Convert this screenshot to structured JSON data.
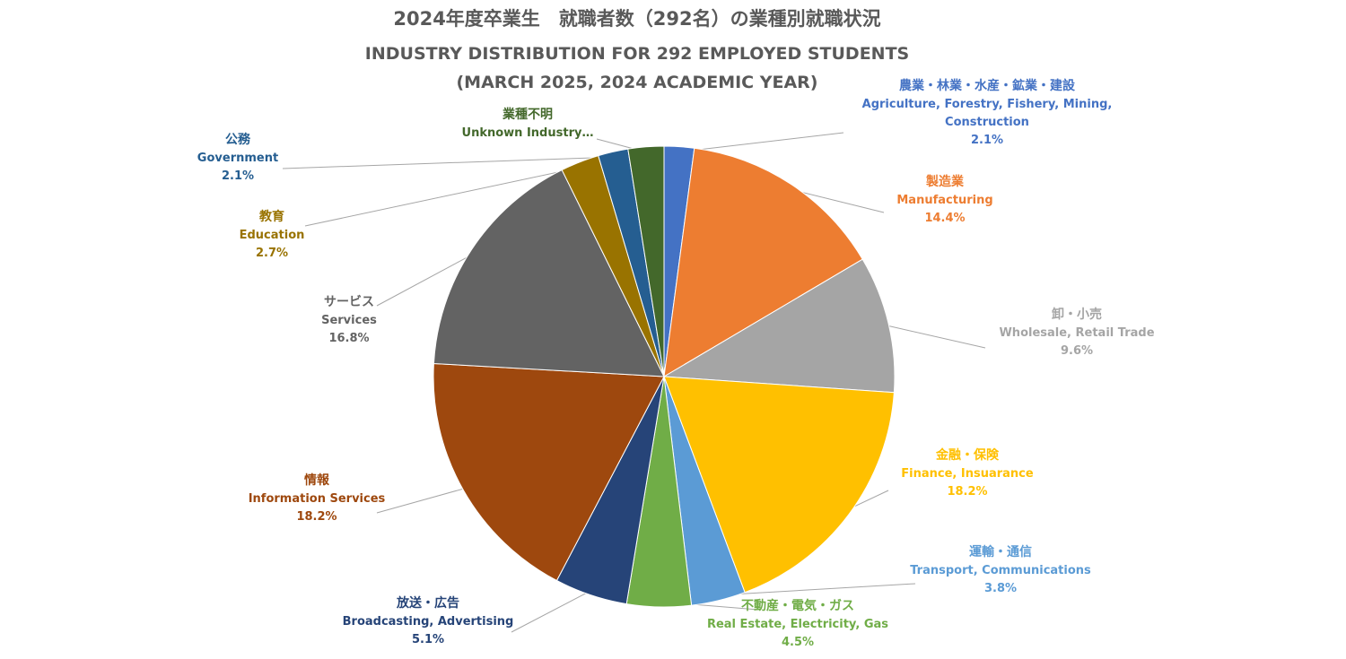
{
  "chart_data": {
    "type": "pie",
    "title": "2024年度卒業生　就職者数（292名）の業種別就職状況",
    "subtitle_lines": [
      "INDUSTRY DISTRIBUTION FOR 292 EMPLOYED STUDENTS",
      "(MARCH 2025, 2024 ACADEMIC YEAR)"
    ],
    "slices": [
      {
        "jp": "農業・林業・水産・鉱業・建設",
        "en_lines": [
          "Agriculture, Forestry, Fishery, Mining,",
          "Construction"
        ],
        "value": 2.1,
        "pct_label": "2.1%",
        "color": "#4472C4"
      },
      {
        "jp": "製造業",
        "en_lines": [
          "Manufacturing"
        ],
        "value": 14.4,
        "pct_label": "14.4%",
        "color": "#ED7D31"
      },
      {
        "jp": "卸・小売",
        "en_lines": [
          "Wholesale, Retail Trade"
        ],
        "value": 9.6,
        "pct_label": "9.6%",
        "color": "#A5A5A5"
      },
      {
        "jp": "金融・保険",
        "en_lines": [
          "Finance, Insuarance"
        ],
        "value": 18.2,
        "pct_label": "18.2%",
        "color": "#FFC000"
      },
      {
        "jp": "運輸・通信",
        "en_lines": [
          "Transport, Communications"
        ],
        "value": 3.8,
        "pct_label": "3.8%",
        "color": "#5B9BD5"
      },
      {
        "jp": "不動産・電気・ガス",
        "en_lines": [
          "Real Estate, Electricity, Gas"
        ],
        "value": 4.5,
        "pct_label": "4.5%",
        "color": "#70AD47"
      },
      {
        "jp": "放送・広告",
        "en_lines": [
          "Broadcasting, Advertising"
        ],
        "value": 5.1,
        "pct_label": "5.1%",
        "color": "#264478"
      },
      {
        "jp": "情報",
        "en_lines": [
          "Information Services"
        ],
        "value": 18.2,
        "pct_label": "18.2%",
        "color": "#9E480E"
      },
      {
        "jp": "サービス",
        "en_lines": [
          "Services"
        ],
        "value": 16.8,
        "pct_label": "16.8%",
        "color": "#636363"
      },
      {
        "jp": "教育",
        "en_lines": [
          "Education"
        ],
        "value": 2.7,
        "pct_label": "2.7%",
        "color": "#997300"
      },
      {
        "jp": "公務",
        "en_lines": [
          "Government"
        ],
        "value": 2.1,
        "pct_label": "2.1%",
        "color": "#255E91"
      },
      {
        "jp": "業種不明",
        "en_lines": [
          "Unknown Industry…"
        ],
        "value": 2.5,
        "pct_label": "",
        "color": "#43682B"
      }
    ]
  }
}
